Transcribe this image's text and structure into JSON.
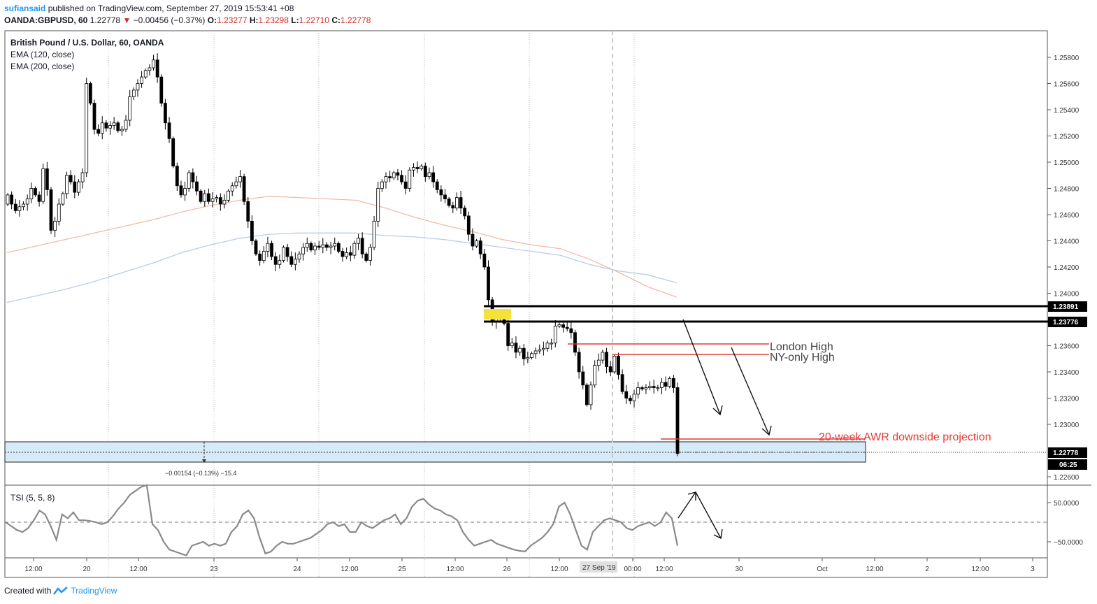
{
  "header": {
    "user": "sufiansaid",
    "published_text": "published on TradingView.com, September 27, 2019 15:53:41 +08",
    "symbol_line": "OANDA:GBPUSD, 60",
    "last": "1.22778",
    "change": "−0.00456 (−0.37%)",
    "o_label": "O:",
    "o": "1.23277",
    "h_label": "H:",
    "h": "1.23298",
    "l_label": "L:",
    "l": "1.22710",
    "c_label": "C:",
    "c": "1.22778"
  },
  "legend": {
    "title": "British Pound / U.S. Dollar, 60, OANDA",
    "ema1": "EMA (120, close)",
    "ema2": "EMA (200, close)"
  },
  "annotations": {
    "london_high": "London High",
    "ny_high": "NY-only High",
    "awr": "20-week AWR downside projection",
    "measure": "−0.00154 (−0.13%) −15.4"
  },
  "price_badges": {
    "level1": "1.23891",
    "level2": "1.23776",
    "last": "1.22778",
    "countdown": "06:25"
  },
  "tsi": {
    "label": "TSI (5, 5, 8)",
    "ticks": [
      "50.0000",
      "−50.0000"
    ]
  },
  "footer": {
    "created": "Created with",
    "brand": "TradingView"
  },
  "colors": {
    "ema120": "#f4b9a8",
    "ema200": "#b9cde6",
    "red_line": "#e53935",
    "zone": "#d6eaf8",
    "highlight": "#f5e13b"
  },
  "chart_data": {
    "type": "candlestick",
    "title": "British Pound / U.S. Dollar, 60, OANDA",
    "y_ticks": [
      1.258,
      1.256,
      1.254,
      1.252,
      1.25,
      1.248,
      1.246,
      1.244,
      1.242,
      1.24,
      1.236,
      1.234,
      1.232,
      1.23,
      1.226
    ],
    "y_tick_labels": [
      "1.25800",
      "1.25600",
      "1.25400",
      "1.25200",
      "1.25000",
      "1.24800",
      "1.24600",
      "1.24400",
      "1.24200",
      "1.24000",
      "1.23600",
      "1.23400",
      "1.23200",
      "1.23000",
      "1.22600"
    ],
    "x_tick_labels": [
      "12:00",
      "20",
      "12:00",
      "23",
      "24",
      "12:00",
      "25",
      "12:00",
      "26",
      "12:00",
      "00:00",
      "12:00",
      "30",
      "Oct",
      "12:00",
      "2",
      "12:00",
      "3"
    ],
    "x_crosshair_label": "27 Sep '19",
    "levels": [
      {
        "name": "resistance-1",
        "value": 1.23891
      },
      {
        "name": "resistance-2",
        "value": 1.23776
      },
      {
        "name": "london-high",
        "value": 1.2361
      },
      {
        "name": "ny-only-high",
        "value": 1.2353
      },
      {
        "name": "awr-projection",
        "value": 1.2288
      },
      {
        "name": "last-close",
        "value": 1.22778
      }
    ],
    "closes": [
      1.2475,
      1.2468,
      1.2463,
      1.2466,
      1.2468,
      1.2472,
      1.248,
      1.2475,
      1.247,
      1.2495,
      1.2479,
      1.2448,
      1.2455,
      1.2468,
      1.2476,
      1.249,
      1.2485,
      1.2477,
      1.2485,
      1.2492,
      1.256,
      1.2545,
      1.2525,
      1.2522,
      1.253,
      1.2526,
      1.2528,
      1.253,
      1.2524,
      1.2525,
      1.2532,
      1.255,
      1.2555,
      1.256,
      1.2565,
      1.257,
      1.2572,
      1.2578,
      1.2565,
      1.2545,
      1.253,
      1.2518,
      1.2497,
      1.2482,
      1.2475,
      1.248,
      1.2492,
      1.2485,
      1.2478,
      1.247,
      1.2476,
      1.247,
      1.2472,
      1.2473,
      1.2468,
      1.2471,
      1.2478,
      1.2482,
      1.2485,
      1.2489,
      1.247,
      1.2455,
      1.244,
      1.243,
      1.2425,
      1.2432,
      1.2438,
      1.2428,
      1.2422,
      1.2425,
      1.2435,
      1.2428,
      1.2422,
      1.2426,
      1.243,
      1.2435,
      1.2438,
      1.2433,
      1.2436,
      1.2435,
      1.2437,
      1.2435,
      1.2436,
      1.2438,
      1.2432,
      1.2428,
      1.2431,
      1.2429,
      1.2438,
      1.2442,
      1.243,
      1.2425,
      1.2435,
      1.2455,
      1.248,
      1.2485,
      1.2489,
      1.2488,
      1.2492,
      1.249,
      1.2485,
      1.248,
      1.2494,
      1.2496,
      1.2495,
      1.2497,
      1.2489,
      1.2492,
      1.2485,
      1.2479,
      1.2475,
      1.2472,
      1.2467,
      1.2465,
      1.2473,
      1.2465,
      1.2459,
      1.2445,
      1.2436,
      1.244,
      1.243,
      1.242,
      1.2395,
      1.2378,
      1.2382,
      1.2383,
      1.2377,
      1.236,
      1.2362,
      1.2355,
      1.2358,
      1.235,
      1.2351,
      1.2354,
      1.2356,
      1.2357,
      1.2358,
      1.2362,
      1.2362,
      1.2375,
      1.2376,
      1.2374,
      1.2373,
      1.237,
      1.2355,
      1.234,
      1.233,
      1.2315,
      1.233,
      1.2345,
      1.2349,
      1.2355,
      1.2344,
      1.234,
      1.2352,
      1.2338,
      1.2325,
      1.232,
      1.2318,
      1.2323,
      1.2328,
      1.2327,
      1.2328,
      1.2329,
      1.2328,
      1.2328,
      1.2332,
      1.2329,
      1.2335,
      1.2328,
      1.22778
    ],
    "ema120": [
      1.2431,
      1.2436,
      1.2441,
      1.2446,
      1.2451,
      1.2456,
      1.2462,
      1.2467,
      1.2471,
      1.2474,
      1.2473,
      1.2472,
      1.2471,
      1.2465,
      1.2458,
      1.2452,
      1.2447,
      1.2441,
      1.2437,
      1.2434,
      1.2426,
      1.2416,
      1.2405,
      1.2397
    ],
    "ema200": [
      1.2393,
      1.2398,
      1.2403,
      1.2409,
      1.2416,
      1.2423,
      1.2431,
      1.2437,
      1.2442,
      1.2445,
      1.2446,
      1.2446,
      1.2446,
      1.2444,
      1.2443,
      1.2441,
      1.2438,
      1.2435,
      1.2432,
      1.2429,
      1.2422,
      1.2417,
      1.2414,
      1.2408
    ],
    "tsi_values": [
      0,
      -10,
      -20,
      -25,
      -15,
      5,
      30,
      20,
      -10,
      -45,
      20,
      10,
      25,
      5,
      5,
      3,
      0,
      -5,
      0,
      15,
      35,
      50,
      70,
      80,
      90,
      95,
      -5,
      -20,
      -50,
      -70,
      -75,
      -80,
      -85,
      -60,
      -55,
      -50,
      -60,
      -55,
      -60,
      -55,
      -25,
      -10,
      20,
      30,
      10,
      -40,
      -80,
      -75,
      -60,
      -50,
      -55,
      -55,
      -50,
      -45,
      -40,
      -30,
      -20,
      -5,
      0,
      -10,
      -5,
      -25,
      -25,
      0,
      -10,
      -15,
      -5,
      5,
      10,
      20,
      -5,
      10,
      40,
      55,
      60,
      45,
      35,
      30,
      20,
      15,
      5,
      -25,
      -45,
      -60,
      -55,
      -50,
      -45,
      -55,
      -60,
      -65,
      -70,
      -73,
      -75,
      -60,
      -50,
      -40,
      -25,
      -5,
      40,
      50,
      20,
      -20,
      -60,
      -70,
      -25,
      -10,
      5,
      10,
      5,
      0,
      -15,
      -20,
      -10,
      -5,
      0,
      -10,
      0,
      25,
      10,
      -60
    ]
  }
}
